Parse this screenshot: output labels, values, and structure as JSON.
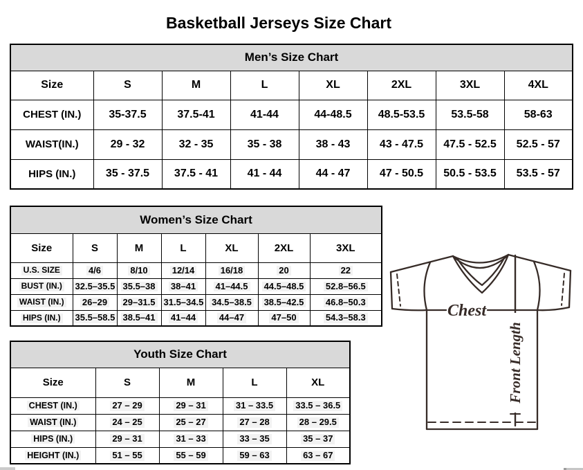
{
  "page": {
    "title": "Basketball Jerseys Size Chart"
  },
  "colors": {
    "header_gray": "#d9d9d9",
    "table_border": "#000000",
    "diagram_ink": "#362b27",
    "scrollbar_gray": "#c6c6c6"
  },
  "tables": {
    "men": {
      "title": "Men’s Size Chart",
      "columns": [
        "Size",
        "S",
        "M",
        "L",
        "XL",
        "2XL",
        "3XL",
        "4XL"
      ],
      "rows": [
        {
          "label": "CHEST (IN.)",
          "values": [
            "35-37.5",
            "37.5-41",
            "41-44",
            "44-48.5",
            "48.5-53.5",
            "53.5-58",
            "58-63"
          ]
        },
        {
          "label": "WAIST(IN.)",
          "values": [
            "29 - 32",
            "32 - 35",
            "35 - 38",
            "38 - 43",
            "43 - 47.5",
            "47.5 - 52.5",
            "52.5 - 57"
          ]
        },
        {
          "label": "HIPS (IN.)",
          "values": [
            "35 - 37.5",
            "37.5 - 41",
            "41 - 44",
            "44 - 47",
            "47 - 50.5",
            "50.5 - 53.5",
            "53.5 - 57"
          ]
        }
      ]
    },
    "women": {
      "title": "Women’s Size Chart",
      "columns": [
        "Size",
        "S",
        "M",
        "L",
        "XL",
        "2XL",
        "3XL"
      ],
      "rows": [
        {
          "label": "U.S. SIZE",
          "values": [
            "4/6",
            "8/10",
            "12/14",
            "16/18",
            "20",
            "22"
          ]
        },
        {
          "label": "BUST (IN.)",
          "values": [
            "32.5–35.5",
            "35.5–38",
            "38–41",
            "41–44.5",
            "44.5–48.5",
            "52.8–56.5"
          ]
        },
        {
          "label": "WAIST (IN.)",
          "values": [
            "26–29",
            "29–31.5",
            "31.5–34.5",
            "34.5–38.5",
            "38.5–42.5",
            "46.8–50.3"
          ]
        },
        {
          "label": "HIPS (IN.)",
          "values": [
            "35.5–58.5",
            "38.5–41",
            "41–44",
            "44–47",
            "47–50",
            "54.3–58.3"
          ]
        }
      ]
    },
    "youth": {
      "title": "Youth Size Chart",
      "columns": [
        "Size",
        "S",
        "M",
        "L",
        "XL"
      ],
      "rows": [
        {
          "label": "CHEST (IN.)",
          "values": [
            "27 – 29",
            "29 – 31",
            "31 – 33.5",
            "33.5 – 36.5"
          ]
        },
        {
          "label": "WAIST (IN.)",
          "values": [
            "24 – 25",
            "25 – 27",
            "27 – 28",
            "28 – 29.5"
          ]
        },
        {
          "label": "HIPS (IN.)",
          "values": [
            "29 – 31",
            "31 – 33",
            "33 – 35",
            "35 – 37"
          ]
        },
        {
          "label": "HEIGHT (IN.)",
          "values": [
            "51 – 55",
            "55 – 59",
            "59 – 63",
            "63 – 67"
          ]
        }
      ]
    }
  },
  "diagram": {
    "chest_label": "Chest",
    "front_length_label": "Front Length"
  }
}
